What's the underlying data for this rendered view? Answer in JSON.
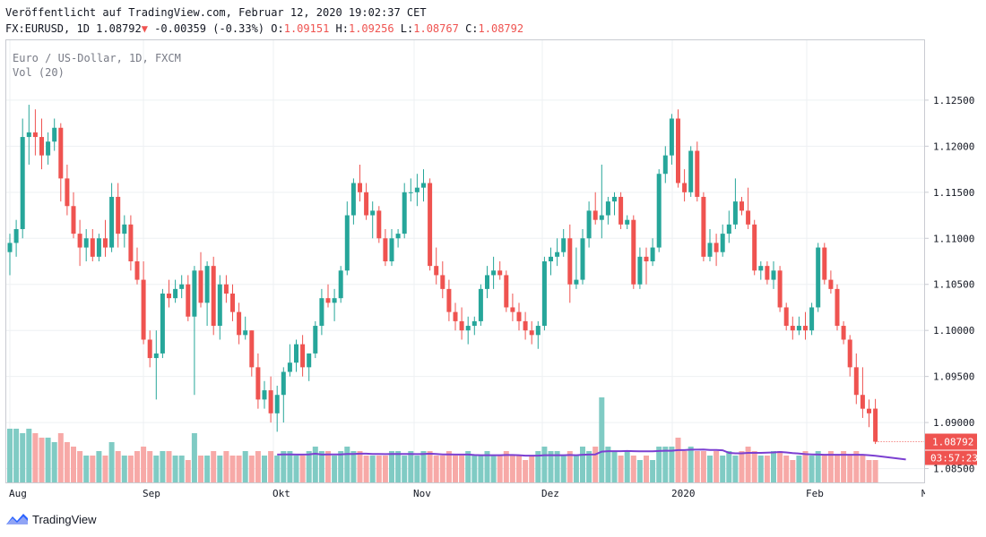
{
  "header": {
    "line1": "Veröffentlicht auf TradingView.com, Februar 12, 2020 19:02:37 CET",
    "symbol": "FX:EURUSD, 1D",
    "last": "1.08792",
    "arrow": "▼",
    "change": "-0.00359 (-0.33%)",
    "o_label": "O:",
    "o_value": "1.09151",
    "h_label": "H:",
    "h_value": "1.09256",
    "l_label": "L:",
    "l_value": "1.08767",
    "c_label": "C:",
    "c_value": "1.08792"
  },
  "legend": {
    "title": "Euro / US-Dollar, 1D, FXCM",
    "volume": "Vol (20)"
  },
  "price_badge": "1.08792",
  "countdown_badge": "03:57:23",
  "footer": {
    "brand": "TradingView"
  },
  "colors": {
    "up": "#26a69a",
    "down": "#ef5350",
    "vol_up": "#80cbc4",
    "vol_down": "#f7a9a7",
    "vol_ma": "#7b3fd1",
    "last_price_line": "#ef5350",
    "grid": "#eef0f3",
    "badge_up": "#26a69a",
    "badge_down": "#ef5350"
  },
  "chart_data": {
    "type": "candlestick",
    "title": "Euro / US-Dollar, 1D, FXCM",
    "x_tick_labels": [
      "Aug",
      "Sep",
      "Okt",
      "Nov",
      "Dez",
      "2020",
      "Feb",
      "M"
    ],
    "y_tick_labels": [
      "1.12500",
      "1.12000",
      "1.11500",
      "1.11000",
      "1.10500",
      "1.10000",
      "1.09500",
      "1.09000",
      "1.08500"
    ],
    "ylim": [
      1.0835,
      1.1315
    ],
    "grid": true,
    "last_price": 1.08792,
    "candles": [
      {
        "o": 1.1085,
        "h": 1.1105,
        "l": 1.106,
        "c": 1.1095,
        "v": 0.6
      },
      {
        "o": 1.1095,
        "h": 1.112,
        "l": 1.108,
        "c": 1.111,
        "v": 0.6
      },
      {
        "o": 1.111,
        "h": 1.123,
        "l": 1.11,
        "c": 1.121,
        "v": 0.55
      },
      {
        "o": 1.121,
        "h": 1.1245,
        "l": 1.118,
        "c": 1.1215,
        "v": 0.6
      },
      {
        "o": 1.1215,
        "h": 1.124,
        "l": 1.119,
        "c": 1.121,
        "v": 0.55
      },
      {
        "o": 1.121,
        "h": 1.123,
        "l": 1.1175,
        "c": 1.119,
        "v": 0.5
      },
      {
        "o": 1.119,
        "h": 1.1215,
        "l": 1.118,
        "c": 1.1205,
        "v": 0.5
      },
      {
        "o": 1.1205,
        "h": 1.123,
        "l": 1.1195,
        "c": 1.122,
        "v": 0.45
      },
      {
        "o": 1.122,
        "h": 1.1225,
        "l": 1.114,
        "c": 1.1165,
        "v": 0.55
      },
      {
        "o": 1.1165,
        "h": 1.118,
        "l": 1.1125,
        "c": 1.1135,
        "v": 0.45
      },
      {
        "o": 1.1135,
        "h": 1.115,
        "l": 1.11,
        "c": 1.1105,
        "v": 0.4
      },
      {
        "o": 1.1105,
        "h": 1.112,
        "l": 1.107,
        "c": 1.109,
        "v": 0.35
      },
      {
        "o": 1.109,
        "h": 1.111,
        "l": 1.1075,
        "c": 1.11,
        "v": 0.3
      },
      {
        "o": 1.11,
        "h": 1.111,
        "l": 1.1075,
        "c": 1.108,
        "v": 0.3
      },
      {
        "o": 1.108,
        "h": 1.1105,
        "l": 1.1075,
        "c": 1.11,
        "v": 0.35
      },
      {
        "o": 1.11,
        "h": 1.112,
        "l": 1.108,
        "c": 1.109,
        "v": 0.3
      },
      {
        "o": 1.109,
        "h": 1.116,
        "l": 1.1085,
        "c": 1.1145,
        "v": 0.45
      },
      {
        "o": 1.1145,
        "h": 1.116,
        "l": 1.109,
        "c": 1.1105,
        "v": 0.35
      },
      {
        "o": 1.1105,
        "h": 1.1125,
        "l": 1.109,
        "c": 1.1115,
        "v": 0.3
      },
      {
        "o": 1.1115,
        "h": 1.1125,
        "l": 1.1065,
        "c": 1.1075,
        "v": 0.3
      },
      {
        "o": 1.1075,
        "h": 1.109,
        "l": 1.105,
        "c": 1.1055,
        "v": 0.35
      },
      {
        "o": 1.1055,
        "h": 1.1075,
        "l": 1.0985,
        "c": 1.099,
        "v": 0.4
      },
      {
        "o": 1.099,
        "h": 1.1,
        "l": 1.096,
        "c": 1.097,
        "v": 0.35
      },
      {
        "o": 1.097,
        "h": 1.1,
        "l": 1.0925,
        "c": 1.0975,
        "v": 0.3
      },
      {
        "o": 1.0975,
        "h": 1.1045,
        "l": 1.097,
        "c": 1.104,
        "v": 0.35
      },
      {
        "o": 1.104,
        "h": 1.1055,
        "l": 1.1025,
        "c": 1.1035,
        "v": 0.35
      },
      {
        "o": 1.1035,
        "h": 1.1055,
        "l": 1.103,
        "c": 1.1045,
        "v": 0.3
      },
      {
        "o": 1.1045,
        "h": 1.106,
        "l": 1.1035,
        "c": 1.105,
        "v": 0.3
      },
      {
        "o": 1.105,
        "h": 1.106,
        "l": 1.101,
        "c": 1.1015,
        "v": 0.25
      },
      {
        "o": 1.1015,
        "h": 1.107,
        "l": 1.093,
        "c": 1.1065,
        "v": 0.55
      },
      {
        "o": 1.1065,
        "h": 1.1085,
        "l": 1.1025,
        "c": 1.103,
        "v": 0.3
      },
      {
        "o": 1.103,
        "h": 1.1075,
        "l": 1.1005,
        "c": 1.107,
        "v": 0.3
      },
      {
        "o": 1.107,
        "h": 1.108,
        "l": 1.0995,
        "c": 1.1005,
        "v": 0.35
      },
      {
        "o": 1.1005,
        "h": 1.106,
        "l": 1.099,
        "c": 1.105,
        "v": 0.3
      },
      {
        "o": 1.105,
        "h": 1.106,
        "l": 1.103,
        "c": 1.104,
        "v": 0.35
      },
      {
        "o": 1.104,
        "h": 1.105,
        "l": 1.101,
        "c": 1.102,
        "v": 0.3
      },
      {
        "o": 1.102,
        "h": 1.103,
        "l": 1.0985,
        "c": 1.0995,
        "v": 0.3
      },
      {
        "o": 1.0995,
        "h": 1.1015,
        "l": 1.099,
        "c": 1.1,
        "v": 0.35
      },
      {
        "o": 1.1,
        "h": 1.1,
        "l": 1.095,
        "c": 1.096,
        "v": 0.3
      },
      {
        "o": 1.096,
        "h": 1.0975,
        "l": 1.0915,
        "c": 1.0925,
        "v": 0.35
      },
      {
        "o": 1.0925,
        "h": 1.0945,
        "l": 1.0915,
        "c": 1.0935,
        "v": 0.3
      },
      {
        "o": 1.0935,
        "h": 1.095,
        "l": 1.09,
        "c": 1.091,
        "v": 0.35
      },
      {
        "o": 1.091,
        "h": 1.094,
        "l": 1.089,
        "c": 1.093,
        "v": 0.3
      },
      {
        "o": 1.093,
        "h": 1.096,
        "l": 1.09,
        "c": 1.0955,
        "v": 0.35
      },
      {
        "o": 1.0955,
        "h": 1.0985,
        "l": 1.095,
        "c": 1.0965,
        "v": 0.35
      },
      {
        "o": 1.0965,
        "h": 1.099,
        "l": 1.0955,
        "c": 1.0985,
        "v": 0.3
      },
      {
        "o": 1.0985,
        "h": 1.0995,
        "l": 1.095,
        "c": 1.096,
        "v": 0.3
      },
      {
        "o": 1.096,
        "h": 1.0975,
        "l": 1.0945,
        "c": 1.0975,
        "v": 0.35
      },
      {
        "o": 1.0975,
        "h": 1.101,
        "l": 1.097,
        "c": 1.1005,
        "v": 0.4
      },
      {
        "o": 1.1005,
        "h": 1.1045,
        "l": 1.0995,
        "c": 1.1035,
        "v": 0.35
      },
      {
        "o": 1.1035,
        "h": 1.105,
        "l": 1.1025,
        "c": 1.103,
        "v": 0.35
      },
      {
        "o": 1.103,
        "h": 1.1045,
        "l": 1.101,
        "c": 1.1035,
        "v": 0.3
      },
      {
        "o": 1.1035,
        "h": 1.107,
        "l": 1.103,
        "c": 1.1065,
        "v": 0.35
      },
      {
        "o": 1.1065,
        "h": 1.114,
        "l": 1.106,
        "c": 1.1125,
        "v": 0.4
      },
      {
        "o": 1.1125,
        "h": 1.1165,
        "l": 1.1115,
        "c": 1.116,
        "v": 0.35
      },
      {
        "o": 1.116,
        "h": 1.118,
        "l": 1.114,
        "c": 1.115,
        "v": 0.35
      },
      {
        "o": 1.115,
        "h": 1.116,
        "l": 1.112,
        "c": 1.1125,
        "v": 0.3
      },
      {
        "o": 1.1125,
        "h": 1.114,
        "l": 1.11,
        "c": 1.113,
        "v": 0.3
      },
      {
        "o": 1.113,
        "h": 1.1135,
        "l": 1.1095,
        "c": 1.11,
        "v": 0.3
      },
      {
        "o": 1.11,
        "h": 1.111,
        "l": 1.107,
        "c": 1.1075,
        "v": 0.3
      },
      {
        "o": 1.1075,
        "h": 1.111,
        "l": 1.107,
        "c": 1.11,
        "v": 0.35
      },
      {
        "o": 1.11,
        "h": 1.111,
        "l": 1.109,
        "c": 1.1105,
        "v": 0.35
      },
      {
        "o": 1.1105,
        "h": 1.116,
        "l": 1.11,
        "c": 1.115,
        "v": 0.3
      },
      {
        "o": 1.115,
        "h": 1.1165,
        "l": 1.114,
        "c": 1.115,
        "v": 0.35
      },
      {
        "o": 1.115,
        "h": 1.117,
        "l": 1.1135,
        "c": 1.1155,
        "v": 0.3
      },
      {
        "o": 1.1155,
        "h": 1.1175,
        "l": 1.114,
        "c": 1.116,
        "v": 0.35
      },
      {
        "o": 1.116,
        "h": 1.1165,
        "l": 1.1065,
        "c": 1.107,
        "v": 0.35
      },
      {
        "o": 1.107,
        "h": 1.109,
        "l": 1.105,
        "c": 1.106,
        "v": 0.3
      },
      {
        "o": 1.106,
        "h": 1.1075,
        "l": 1.1035,
        "c": 1.1045,
        "v": 0.3
      },
      {
        "o": 1.1045,
        "h": 1.1055,
        "l": 1.101,
        "c": 1.102,
        "v": 0.35
      },
      {
        "o": 1.102,
        "h": 1.103,
        "l": 1.1,
        "c": 1.101,
        "v": 0.3
      },
      {
        "o": 1.101,
        "h": 1.1025,
        "l": 1.099,
        "c": 1.1,
        "v": 0.3
      },
      {
        "o": 1.1,
        "h": 1.1015,
        "l": 1.0985,
        "c": 1.1005,
        "v": 0.35
      },
      {
        "o": 1.1005,
        "h": 1.1015,
        "l": 1.0995,
        "c": 1.101,
        "v": 0.3
      },
      {
        "o": 1.101,
        "h": 1.105,
        "l": 1.1005,
        "c": 1.1045,
        "v": 0.3
      },
      {
        "o": 1.1045,
        "h": 1.107,
        "l": 1.1035,
        "c": 1.106,
        "v": 0.35
      },
      {
        "o": 1.106,
        "h": 1.108,
        "l": 1.1045,
        "c": 1.1065,
        "v": 0.3
      },
      {
        "o": 1.1065,
        "h": 1.1075,
        "l": 1.1055,
        "c": 1.106,
        "v": 0.3
      },
      {
        "o": 1.106,
        "h": 1.1065,
        "l": 1.102,
        "c": 1.1025,
        "v": 0.35
      },
      {
        "o": 1.1025,
        "h": 1.104,
        "l": 1.101,
        "c": 1.102,
        "v": 0.3
      },
      {
        "o": 1.102,
        "h": 1.103,
        "l": 1.1,
        "c": 1.101,
        "v": 0.3
      },
      {
        "o": 1.101,
        "h": 1.102,
        "l": 1.099,
        "c": 1.1,
        "v": 0.25
      },
      {
        "o": 1.1,
        "h": 1.101,
        "l": 1.0985,
        "c": 1.0995,
        "v": 0.3
      },
      {
        "o": 1.0995,
        "h": 1.101,
        "l": 1.098,
        "c": 1.1005,
        "v": 0.35
      },
      {
        "o": 1.1005,
        "h": 1.108,
        "l": 1.1,
        "c": 1.1075,
        "v": 0.4
      },
      {
        "o": 1.1075,
        "h": 1.109,
        "l": 1.106,
        "c": 1.108,
        "v": 0.35
      },
      {
        "o": 1.108,
        "h": 1.11,
        "l": 1.107,
        "c": 1.1085,
        "v": 0.35
      },
      {
        "o": 1.1085,
        "h": 1.111,
        "l": 1.108,
        "c": 1.11,
        "v": 0.3
      },
      {
        "o": 1.11,
        "h": 1.1115,
        "l": 1.103,
        "c": 1.105,
        "v": 0.35
      },
      {
        "o": 1.105,
        "h": 1.109,
        "l": 1.1045,
        "c": 1.1055,
        "v": 0.3
      },
      {
        "o": 1.1055,
        "h": 1.111,
        "l": 1.105,
        "c": 1.11,
        "v": 0.4
      },
      {
        "o": 1.11,
        "h": 1.114,
        "l": 1.109,
        "c": 1.113,
        "v": 0.35
      },
      {
        "o": 1.113,
        "h": 1.115,
        "l": 1.1115,
        "c": 1.112,
        "v": 0.4
      },
      {
        "o": 1.112,
        "h": 1.118,
        "l": 1.11,
        "c": 1.1125,
        "v": 0.95
      },
      {
        "o": 1.1125,
        "h": 1.1145,
        "l": 1.1115,
        "c": 1.114,
        "v": 0.4
      },
      {
        "o": 1.114,
        "h": 1.115,
        "l": 1.1125,
        "c": 1.1145,
        "v": 0.35
      },
      {
        "o": 1.1145,
        "h": 1.115,
        "l": 1.111,
        "c": 1.1115,
        "v": 0.3
      },
      {
        "o": 1.1115,
        "h": 1.1125,
        "l": 1.111,
        "c": 1.112,
        "v": 0.35
      },
      {
        "o": 1.112,
        "h": 1.1125,
        "l": 1.1045,
        "c": 1.105,
        "v": 0.3
      },
      {
        "o": 1.105,
        "h": 1.109,
        "l": 1.1045,
        "c": 1.108,
        "v": 0.25
      },
      {
        "o": 1.108,
        "h": 1.109,
        "l": 1.105,
        "c": 1.1075,
        "v": 0.3
      },
      {
        "o": 1.1075,
        "h": 1.11,
        "l": 1.107,
        "c": 1.109,
        "v": 0.25
      },
      {
        "o": 1.109,
        "h": 1.1175,
        "l": 1.1085,
        "c": 1.117,
        "v": 0.4
      },
      {
        "o": 1.117,
        "h": 1.12,
        "l": 1.116,
        "c": 1.119,
        "v": 0.4
      },
      {
        "o": 1.119,
        "h": 1.1235,
        "l": 1.118,
        "c": 1.123,
        "v": 0.4
      },
      {
        "o": 1.123,
        "h": 1.124,
        "l": 1.1155,
        "c": 1.116,
        "v": 0.5
      },
      {
        "o": 1.116,
        "h": 1.1175,
        "l": 1.114,
        "c": 1.115,
        "v": 0.35
      },
      {
        "o": 1.115,
        "h": 1.12,
        "l": 1.1145,
        "c": 1.1195,
        "v": 0.4
      },
      {
        "o": 1.1195,
        "h": 1.1205,
        "l": 1.114,
        "c": 1.1145,
        "v": 0.35
      },
      {
        "o": 1.1145,
        "h": 1.115,
        "l": 1.1075,
        "c": 1.108,
        "v": 0.35
      },
      {
        "o": 1.108,
        "h": 1.111,
        "l": 1.1075,
        "c": 1.1095,
        "v": 0.3
      },
      {
        "o": 1.1095,
        "h": 1.1105,
        "l": 1.107,
        "c": 1.1085,
        "v": 0.35
      },
      {
        "o": 1.1085,
        "h": 1.1115,
        "l": 1.108,
        "c": 1.1105,
        "v": 0.3
      },
      {
        "o": 1.1105,
        "h": 1.113,
        "l": 1.1095,
        "c": 1.1115,
        "v": 0.35
      },
      {
        "o": 1.1115,
        "h": 1.1165,
        "l": 1.111,
        "c": 1.114,
        "v": 0.3
      },
      {
        "o": 1.114,
        "h": 1.1145,
        "l": 1.1125,
        "c": 1.113,
        "v": 0.35
      },
      {
        "o": 1.113,
        "h": 1.1155,
        "l": 1.111,
        "c": 1.1115,
        "v": 0.4
      },
      {
        "o": 1.1115,
        "h": 1.112,
        "l": 1.106,
        "c": 1.1065,
        "v": 0.35
      },
      {
        "o": 1.1065,
        "h": 1.1075,
        "l": 1.1055,
        "c": 1.107,
        "v": 0.3
      },
      {
        "o": 1.107,
        "h": 1.1075,
        "l": 1.105,
        "c": 1.1055,
        "v": 0.3
      },
      {
        "o": 1.1055,
        "h": 1.1075,
        "l": 1.1045,
        "c": 1.1065,
        "v": 0.35
      },
      {
        "o": 1.1065,
        "h": 1.107,
        "l": 1.102,
        "c": 1.1025,
        "v": 0.35
      },
      {
        "o": 1.1025,
        "h": 1.103,
        "l": 1.1,
        "c": 1.1005,
        "v": 0.3
      },
      {
        "o": 1.1005,
        "h": 1.1015,
        "l": 1.099,
        "c": 1.1,
        "v": 0.25
      },
      {
        "o": 1.1,
        "h": 1.1015,
        "l": 1.0995,
        "c": 1.1005,
        "v": 0.3
      },
      {
        "o": 1.1005,
        "h": 1.102,
        "l": 1.099,
        "c": 1.1,
        "v": 0.35
      },
      {
        "o": 1.1,
        "h": 1.103,
        "l": 1.0995,
        "c": 1.1025,
        "v": 0.3
      },
      {
        "o": 1.1025,
        "h": 1.1095,
        "l": 1.102,
        "c": 1.109,
        "v": 0.35
      },
      {
        "o": 1.109,
        "h": 1.1095,
        "l": 1.105,
        "c": 1.1055,
        "v": 0.3
      },
      {
        "o": 1.1055,
        "h": 1.1065,
        "l": 1.104,
        "c": 1.1045,
        "v": 0.35
      },
      {
        "o": 1.1045,
        "h": 1.105,
        "l": 1.1,
        "c": 1.1005,
        "v": 0.3
      },
      {
        "o": 1.1005,
        "h": 1.101,
        "l": 1.0985,
        "c": 1.099,
        "v": 0.35
      },
      {
        "o": 1.099,
        "h": 1.0995,
        "l": 1.095,
        "c": 1.096,
        "v": 0.3
      },
      {
        "o": 1.096,
        "h": 1.0975,
        "l": 1.092,
        "c": 1.093,
        "v": 0.35
      },
      {
        "o": 1.093,
        "h": 1.096,
        "l": 1.0905,
        "c": 1.0915,
        "v": 0.3
      },
      {
        "o": 1.0915,
        "h": 1.0925,
        "l": 1.0895,
        "c": 1.091,
        "v": 0.25
      },
      {
        "o": 1.09151,
        "h": 1.09256,
        "l": 1.08767,
        "c": 1.08792,
        "v": 0.25
      }
    ]
  }
}
